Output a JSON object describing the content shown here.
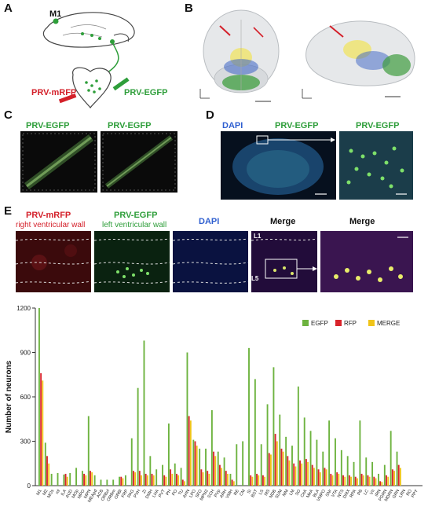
{
  "panels": {
    "a": {
      "letter": "A",
      "m1_label": "M1",
      "left_injection_label": "PRV-mRFP",
      "right_injection_label": "PRV-EGFP"
    },
    "b": {
      "letter": "B"
    },
    "c": {
      "letter": "C",
      "left_title": "PRV-EGFP",
      "right_title": "PRV-EGFP"
    },
    "d": {
      "letter": "D",
      "dapi_title": "DAPI",
      "egfp_title": "PRV-EGFP",
      "zoom_title": "PRV-EGFP"
    },
    "e": {
      "letter": "E",
      "col1_title": "PRV-mRFP",
      "col1_subtitle": "right ventricular wall",
      "col2_title": "PRV-EGFP",
      "col2_subtitle": "left ventricular wall",
      "col3_title": "DAPI",
      "col4_title": "Merge",
      "col5_title": "Merge",
      "layer_l1": "L1",
      "layer_l5": "L5"
    }
  },
  "colors": {
    "egfp": "#6db33f",
    "rfp": "#d9242b",
    "merge": "#f0c419",
    "dapi": "#2f5fd0"
  },
  "chart_data": {
    "type": "bar",
    "ylabel": "Number of neurons",
    "ylim": [
      0,
      1200
    ],
    "yticks": [
      0,
      300,
      600,
      900,
      1200
    ],
    "legend": [
      "EGFP",
      "RFP",
      "MERGE"
    ],
    "legend_position": "top-right",
    "categories": [
      "M1",
      "M2",
      "MOs",
      "ml",
      "ILA",
      "AUD",
      "MOp",
      "MPO",
      "MPN",
      "MEApd",
      "ACB",
      "ORBvl",
      "ORBm",
      "ORBl",
      "FRP",
      "PAG",
      "PVH",
      "ZI",
      "DMH",
      "LHA",
      "PVT",
      "PH",
      "PO",
      "TU",
      "AHN",
      "LPO",
      "SFO",
      "MPN2",
      "SCH",
      "PVp",
      "ARH",
      "VMH",
      "RE",
      "CM",
      "SI",
      "BST",
      "LS",
      "MS",
      "NDB",
      "SUM",
      "MM",
      "LM",
      "SO",
      "CeA",
      "MeA",
      "BLA",
      "VMPO",
      "SNr",
      "VTA",
      "NTS",
      "DMX",
      "RPA",
      "PB",
      "LC",
      "VII",
      "IRN",
      "PGRN",
      "MDRN",
      "GRN",
      "LRN",
      "RO",
      "PPY"
    ],
    "series": [
      {
        "name": "EGFP",
        "values": [
          1200,
          290,
          80,
          85,
          75,
          85,
          120,
          100,
          470,
          70,
          40,
          40,
          40,
          60,
          70,
          320,
          660,
          980,
          200,
          110,
          140,
          420,
          150,
          120,
          900,
          310,
          250,
          250,
          510,
          230,
          190,
          80,
          280,
          300,
          930,
          720,
          280,
          550,
          800,
          480,
          330,
          270,
          670,
          460,
          370,
          310,
          230,
          440,
          320,
          240,
          200,
          160,
          440,
          190,
          160,
          80,
          140,
          370,
          230,
          0,
          0,
          0
        ]
      },
      {
        "name": "RFP",
        "values": [
          760,
          200,
          0,
          0,
          80,
          0,
          0,
          80,
          100,
          0,
          0,
          0,
          0,
          60,
          0,
          100,
          100,
          80,
          80,
          0,
          70,
          110,
          80,
          40,
          470,
          300,
          110,
          100,
          230,
          140,
          100,
          40,
          0,
          0,
          70,
          80,
          70,
          220,
          350,
          250,
          200,
          150,
          170,
          180,
          140,
          110,
          120,
          80,
          90,
          70,
          70,
          60,
          80,
          70,
          60,
          30,
          70,
          110,
          140,
          0,
          0,
          0
        ]
      },
      {
        "name": "MERGE",
        "values": [
          710,
          150,
          0,
          0,
          60,
          0,
          0,
          70,
          90,
          0,
          0,
          0,
          0,
          50,
          0,
          90,
          70,
          70,
          70,
          0,
          60,
          80,
          70,
          30,
          440,
          270,
          90,
          80,
          200,
          120,
          80,
          30,
          0,
          0,
          60,
          70,
          60,
          210,
          300,
          230,
          170,
          130,
          150,
          160,
          120,
          90,
          110,
          70,
          80,
          60,
          60,
          50,
          70,
          60,
          50,
          25,
          60,
          100,
          120,
          0,
          0,
          0
        ]
      }
    ]
  }
}
